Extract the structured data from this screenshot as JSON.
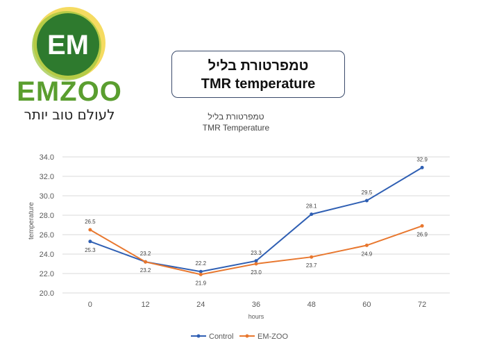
{
  "logo": {
    "text": "EM",
    "brand": "EMZOO",
    "tagline": "לעולם טוב יותר"
  },
  "header": {
    "title_he": "טמפרטורת בליל",
    "title_en": "TMR temperature"
  },
  "chart_data": {
    "type": "line",
    "title": "טמפרטורת בליל",
    "subtitle": "TMR Temperature",
    "xlabel": "hours",
    "ylabel": "temperature",
    "categories": [
      "0",
      "12",
      "24",
      "36",
      "48",
      "60",
      "72"
    ],
    "yticks": [
      "20.0",
      "22.0",
      "24.0",
      "26.0",
      "28.0",
      "30.0",
      "32.0",
      "34.0"
    ],
    "ylim": [
      20,
      34
    ],
    "grid": true,
    "legend": "bottom",
    "series": [
      {
        "name": "Control",
        "color": "#2f5fb3",
        "values": [
          25.3,
          23.2,
          22.2,
          23.3,
          28.1,
          29.5,
          32.9
        ]
      },
      {
        "name": "EM-ZOO",
        "color": "#e8772e",
        "values": [
          26.5,
          23.2,
          21.9,
          23.0,
          23.7,
          24.9,
          26.9
        ]
      }
    ]
  }
}
